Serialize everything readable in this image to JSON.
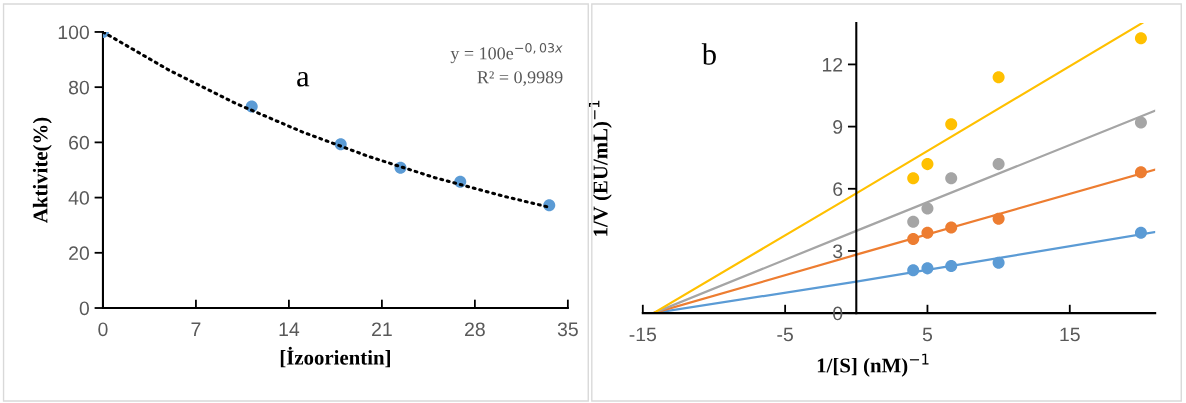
{
  "chart_data": [
    {
      "type": "scatter",
      "xlabel": "[İzoorientin]",
      "ylabel": "Aktivite(%)",
      "annotations": [
        "a",
        "y = 100e$^{−0,03x}$",
        "R² = 0,9989"
      ],
      "xlim": [
        0,
        35
      ],
      "xticks": [
        0,
        7,
        14,
        21,
        28,
        35
      ],
      "ylim": [
        0,
        100
      ],
      "yticks": [
        0,
        20,
        40,
        60,
        80,
        100
      ],
      "grid": false,
      "series": [
        {
          "type": "line",
          "color": "#000000",
          "line_style": "dotted",
          "marker": "none",
          "x": [
            0,
            5,
            10,
            15,
            20,
            25,
            30,
            33.6
          ],
          "values": [
            100,
            86.1,
            74.1,
            63.8,
            54.9,
            47.2,
            40.7,
            36.5
          ]
        },
        {
          "color": "#5b9bd5",
          "marker": "circle",
          "x": [
            0,
            11.2,
            17.9,
            22.4,
            26.9,
            33.6
          ],
          "values": [
            100,
            73,
            59.3,
            50.8,
            45.7,
            37.2
          ]
        }
      ]
    },
    {
      "type": "scatter",
      "xlabel": "1/[S] (nM)$^{−1}$",
      "ylabel": "1/V (EU/mL)$^{−1}$",
      "annotations": [
        "b"
      ],
      "xlim": [
        -15,
        21
      ],
      "xticks": [
        -15,
        -5,
        5,
        15
      ],
      "ylim": [
        0,
        14
      ],
      "yticks": [
        0,
        3,
        6,
        9,
        12
      ],
      "grid": false,
      "series": [
        {
          "type": "line",
          "color": "#5b9bd5",
          "line_style": "solid",
          "marker": "none",
          "x": [
            -14.25,
            0,
            21
          ],
          "values": [
            0,
            1.52,
            3.91
          ]
        },
        {
          "type": "line",
          "color": "#ed7d31",
          "line_style": "solid",
          "marker": "none",
          "x": [
            -14.25,
            0,
            21
          ],
          "values": [
            0,
            2.82,
            6.93
          ]
        },
        {
          "type": "line",
          "color": "#a5a5a5",
          "line_style": "solid",
          "marker": "none",
          "x": [
            -14.25,
            0,
            21
          ],
          "values": [
            0,
            3.97,
            9.77
          ]
        },
        {
          "type": "line",
          "color": "#ffc000",
          "line_style": "solid",
          "marker": "none",
          "x": [
            -14.25,
            0,
            20.1
          ],
          "values": [
            0,
            5.78,
            14.0
          ]
        },
        {
          "color": "#5b9bd5",
          "marker": "circle",
          "x": [
            4,
            5,
            6.67,
            10,
            20
          ],
          "values": [
            2.07,
            2.16,
            2.27,
            2.43,
            3.88
          ]
        },
        {
          "color": "#ed7d31",
          "marker": "circle",
          "x": [
            4,
            5,
            6.67,
            10,
            20
          ],
          "values": [
            3.58,
            3.88,
            4.13,
            4.55,
            6.8
          ]
        },
        {
          "color": "#a5a5a5",
          "marker": "circle",
          "x": [
            4,
            5,
            6.67,
            10,
            20
          ],
          "values": [
            4.41,
            5.05,
            6.51,
            7.19,
            9.2
          ]
        },
        {
          "color": "#ffc000",
          "marker": "circle",
          "x": [
            4,
            5,
            6.67,
            10,
            20
          ],
          "values": [
            6.51,
            7.19,
            9.11,
            11.38,
            13.26
          ]
        }
      ]
    }
  ]
}
